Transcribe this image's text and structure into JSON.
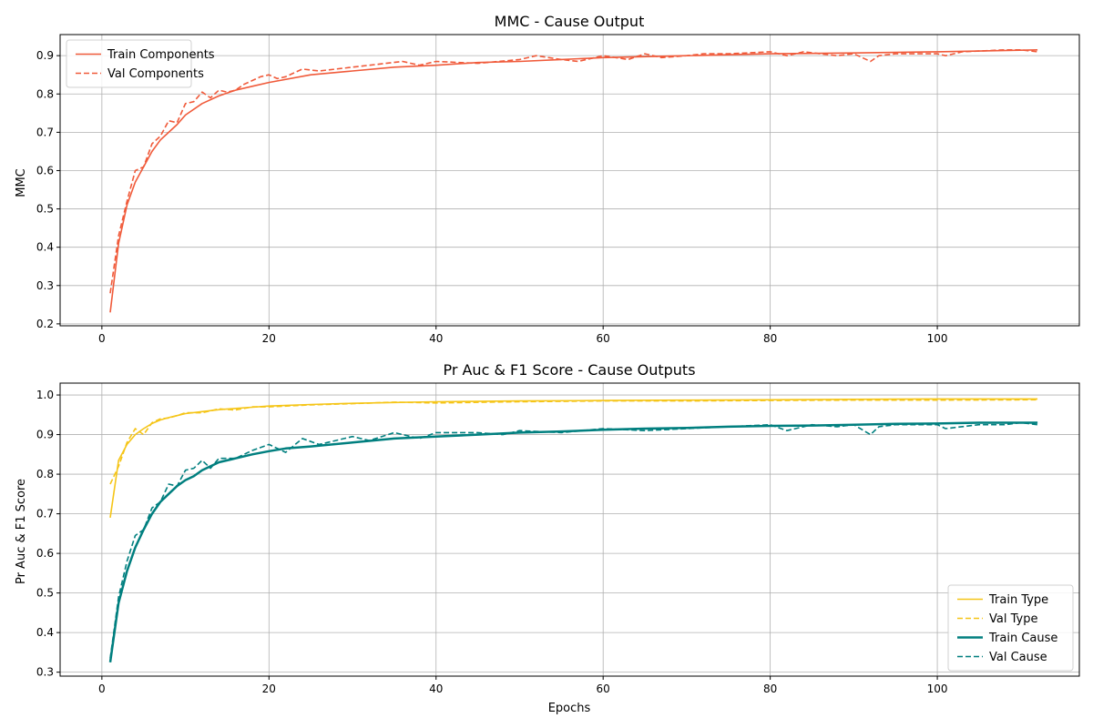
{
  "chart_data": [
    {
      "type": "line",
      "title": "MMC - Cause Output",
      "xlabel": "",
      "ylabel": "MMC",
      "xlim": [
        -5,
        117
      ],
      "ylim": [
        0.195,
        0.955
      ],
      "xticks": [
        0,
        20,
        40,
        60,
        80,
        100
      ],
      "xtick_labels": [
        "0",
        "20",
        "40",
        "60",
        "80",
        "100"
      ],
      "yticks": [
        0.2,
        0.3,
        0.4,
        0.5,
        0.6,
        0.7,
        0.8,
        0.9
      ],
      "ytick_labels": [
        "0.2",
        "0.3",
        "0.4",
        "0.5",
        "0.6",
        "0.7",
        "0.8",
        "0.9"
      ],
      "grid": true,
      "legend": "top-left",
      "series": [
        {
          "name": "Train Components",
          "color": "#f05a3a",
          "style": "solid",
          "width": "normal",
          "x": [
            1,
            2,
            3,
            4,
            5,
            6,
            7,
            8,
            9,
            10,
            12,
            14,
            16,
            18,
            20,
            25,
            30,
            35,
            40,
            45,
            50,
            55,
            60,
            70,
            80,
            90,
            100,
            105,
            112
          ],
          "y": [
            0.23,
            0.41,
            0.51,
            0.57,
            0.61,
            0.65,
            0.68,
            0.7,
            0.72,
            0.745,
            0.775,
            0.795,
            0.81,
            0.82,
            0.83,
            0.85,
            0.86,
            0.87,
            0.875,
            0.882,
            0.885,
            0.89,
            0.895,
            0.9,
            0.905,
            0.907,
            0.91,
            0.912,
            0.915
          ]
        },
        {
          "name": "Val Components",
          "color": "#f05a3a",
          "style": "dashed",
          "width": "normal",
          "x": [
            1,
            2,
            3,
            4,
            5,
            6,
            7,
            8,
            9,
            10,
            11,
            12,
            13,
            14,
            15,
            16,
            17,
            18,
            19,
            20,
            21,
            22,
            24,
            26,
            28,
            30,
            32,
            34,
            36,
            38,
            40,
            45,
            50,
            52,
            55,
            57,
            60,
            63,
            65,
            67,
            70,
            72,
            75,
            78,
            80,
            82,
            84,
            86,
            88,
            90,
            92,
            93,
            95,
            100,
            101,
            103,
            105,
            108,
            110,
            112
          ],
          "y": [
            0.28,
            0.43,
            0.52,
            0.6,
            0.61,
            0.67,
            0.69,
            0.73,
            0.725,
            0.775,
            0.78,
            0.805,
            0.79,
            0.81,
            0.805,
            0.81,
            0.825,
            0.835,
            0.845,
            0.85,
            0.84,
            0.845,
            0.865,
            0.86,
            0.865,
            0.87,
            0.875,
            0.88,
            0.885,
            0.875,
            0.885,
            0.88,
            0.89,
            0.9,
            0.89,
            0.885,
            0.9,
            0.89,
            0.905,
            0.895,
            0.9,
            0.905,
            0.905,
            0.908,
            0.91,
            0.9,
            0.91,
            0.905,
            0.9,
            0.905,
            0.885,
            0.9,
            0.905,
            0.905,
            0.9,
            0.91,
            0.912,
            0.915,
            0.915,
            0.91
          ]
        }
      ]
    },
    {
      "type": "line",
      "title": "Pr Auc & F1 Score - Cause Outputs",
      "xlabel": "Epochs",
      "ylabel": "Pr Auc & F1 Score",
      "xlim": [
        -5,
        117
      ],
      "ylim": [
        0.29,
        1.03
      ],
      "xticks": [
        0,
        20,
        40,
        60,
        80,
        100
      ],
      "xtick_labels": [
        "0",
        "20",
        "40",
        "60",
        "80",
        "100"
      ],
      "yticks": [
        0.3,
        0.4,
        0.5,
        0.6,
        0.7,
        0.8,
        0.9,
        1.0
      ],
      "ytick_labels": [
        "0.3",
        "0.4",
        "0.5",
        "0.6",
        "0.7",
        "0.8",
        "0.9",
        "1.0"
      ],
      "grid": true,
      "legend": "bottom-right",
      "series": [
        {
          "name": "Train Type",
          "color": "#f5c518",
          "style": "solid",
          "width": "normal",
          "x": [
            1,
            2,
            3,
            4,
            5,
            6,
            7,
            8,
            9,
            10,
            12,
            14,
            16,
            18,
            20,
            25,
            30,
            35,
            40,
            50,
            60,
            70,
            80,
            90,
            100,
            112
          ],
          "y": [
            0.69,
            0.835,
            0.875,
            0.9,
            0.915,
            0.928,
            0.937,
            0.943,
            0.948,
            0.953,
            0.958,
            0.963,
            0.966,
            0.969,
            0.972,
            0.976,
            0.979,
            0.981,
            0.983,
            0.985,
            0.986,
            0.987,
            0.988,
            0.989,
            0.99,
            0.99
          ]
        },
        {
          "name": "Val Type",
          "color": "#f5c518",
          "style": "dashed",
          "width": "normal",
          "x": [
            1,
            2,
            3,
            4,
            5,
            6,
            7,
            8,
            9,
            10,
            12,
            14,
            16,
            18,
            20,
            25,
            30,
            35,
            40,
            50,
            60,
            70,
            80,
            90,
            100,
            112
          ],
          "y": [
            0.775,
            0.82,
            0.88,
            0.915,
            0.9,
            0.93,
            0.94,
            0.942,
            0.948,
            0.955,
            0.955,
            0.965,
            0.962,
            0.97,
            0.97,
            0.975,
            0.978,
            0.982,
            0.98,
            0.983,
            0.985,
            0.985,
            0.986,
            0.987,
            0.987,
            0.988
          ]
        },
        {
          "name": "Train Cause",
          "color": "#007f7f",
          "style": "solid",
          "width": "bold",
          "x": [
            1,
            2,
            3,
            4,
            5,
            6,
            7,
            8,
            9,
            10,
            11,
            12,
            13,
            14,
            15,
            16,
            18,
            20,
            22,
            25,
            30,
            35,
            40,
            45,
            50,
            55,
            60,
            65,
            70,
            75,
            80,
            85,
            90,
            95,
            100,
            105,
            112
          ],
          "y": [
            0.325,
            0.475,
            0.555,
            0.615,
            0.66,
            0.7,
            0.73,
            0.75,
            0.77,
            0.785,
            0.795,
            0.81,
            0.82,
            0.83,
            0.835,
            0.84,
            0.85,
            0.858,
            0.865,
            0.87,
            0.88,
            0.89,
            0.895,
            0.9,
            0.905,
            0.908,
            0.912,
            0.915,
            0.917,
            0.92,
            0.922,
            0.923,
            0.925,
            0.927,
            0.928,
            0.93,
            0.93
          ]
        },
        {
          "name": "Val Cause",
          "color": "#007f7f",
          "style": "dashed",
          "width": "normal",
          "x": [
            1,
            2,
            3,
            4,
            5,
            6,
            7,
            8,
            9,
            10,
            11,
            12,
            13,
            14,
            16,
            18,
            20,
            22,
            24,
            26,
            28,
            30,
            32,
            35,
            38,
            40,
            45,
            48,
            50,
            55,
            60,
            65,
            70,
            75,
            80,
            82,
            85,
            88,
            90,
            92,
            93,
            95,
            100,
            101,
            105,
            108,
            110,
            112
          ],
          "y": [
            0.335,
            0.49,
            0.58,
            0.645,
            0.66,
            0.715,
            0.73,
            0.775,
            0.77,
            0.81,
            0.815,
            0.835,
            0.815,
            0.84,
            0.84,
            0.86,
            0.875,
            0.855,
            0.89,
            0.875,
            0.885,
            0.895,
            0.885,
            0.905,
            0.89,
            0.905,
            0.905,
            0.9,
            0.91,
            0.905,
            0.915,
            0.91,
            0.915,
            0.92,
            0.925,
            0.91,
            0.925,
            0.92,
            0.925,
            0.9,
            0.92,
            0.925,
            0.925,
            0.915,
            0.925,
            0.925,
            0.93,
            0.925
          ]
        }
      ]
    }
  ]
}
